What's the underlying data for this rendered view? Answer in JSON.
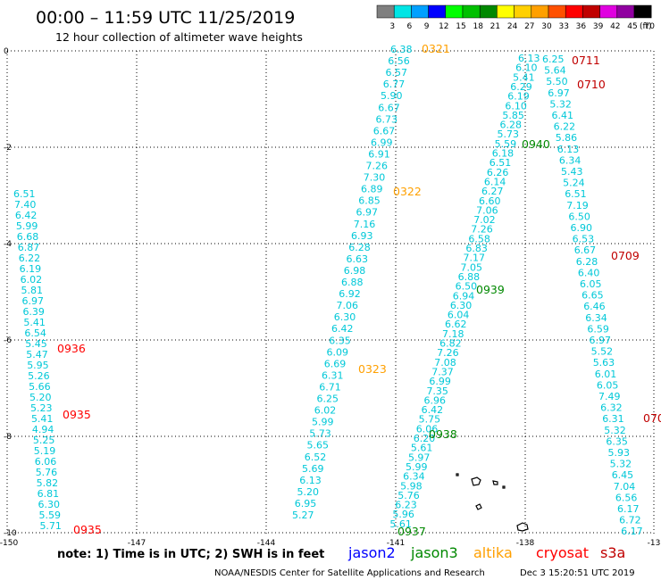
{
  "header": {
    "title": "00:00 – 11:59 UTC 11/25/2019",
    "subtitle": "12 hour collection of altimeter wave heights"
  },
  "colorbar": {
    "colors": [
      "#7f7f7f",
      "#00e5e5",
      "#00a0ff",
      "#0000ff",
      "#00ff00",
      "#00c000",
      "#008800",
      "#ffff00",
      "#ffd000",
      "#ffa000",
      "#ff5000",
      "#ff0000",
      "#c00000",
      "#e000e0",
      "#9000a0",
      "#000000"
    ],
    "labels": [
      "3",
      "6",
      "9",
      "12",
      "15",
      "18",
      "21",
      "24",
      "27",
      "30",
      "33",
      "36",
      "39",
      "42",
      "45",
      "70"
    ],
    "unit": "(ft)"
  },
  "axes": {
    "x_ticks": [
      "-150",
      "-147",
      "-144",
      "-141",
      "-138",
      "-13"
    ],
    "y_ticks": [
      "0",
      "-2",
      "-4",
      "-6",
      "-8",
      "-10"
    ]
  },
  "note": "note: 1) Time is in UTC; 2) SWH is in feet",
  "legend": [
    {
      "name": "jason2",
      "color": "#0000ff"
    },
    {
      "name": "jason3",
      "color": "#008800"
    },
    {
      "name": "altika",
      "color": "#ffa000"
    },
    {
      "name": "cryosat",
      "color": "#ff0000"
    },
    {
      "name": "s3a",
      "color": "#c00000"
    }
  ],
  "footer": {
    "credit": "NOAA/NESDIS Center for Satellite Applications and Research",
    "timestamp": "Dec  3 15:20:51 UTC 2019"
  },
  "passes": [
    {
      "values": [
        "6.51",
        "7.40",
        "6.42",
        "5.99",
        "6.68",
        "6.87",
        "6.22",
        "6.19",
        "6.02",
        "5.81",
        "6.97",
        "6.39",
        "5.41",
        "6.54",
        "5.45",
        "5.47",
        "5.95",
        "5.26",
        "5.66",
        "5.20",
        "5.23",
        "5.41",
        "4.94",
        "5.25",
        "5.19",
        "6.06",
        "5.76",
        "5.82",
        "6.81",
        "6.30",
        "5.59",
        "5.71"
      ],
      "time_labels": [
        {
          "text": "0936",
          "color": "#ff0000"
        },
        {
          "text": "0935",
          "color": "#ff0000"
        },
        {
          "text": "0935",
          "color": "#ff0000"
        }
      ]
    },
    {
      "values": [
        "6.38",
        "6.56",
        "6.57",
        "6.77",
        "5.90",
        "6.67",
        "6.73",
        "6.67",
        "6.99",
        "6.91",
        "7.26",
        "7.30",
        "6.89",
        "6.85",
        "6.97",
        "7.16",
        "6.93",
        "6.28",
        "6.63",
        "6.98",
        "6.88",
        "6.92",
        "7.06",
        "6.30",
        "6.42",
        "6.35",
        "6.09",
        "6.69",
        "6.31",
        "6.71",
        "6.25",
        "6.02",
        "5.99",
        "5.73",
        "5.65",
        "6.52",
        "5.69",
        "6.13",
        "5.20",
        "6.95",
        "5.27"
      ],
      "time_labels": [
        {
          "text": "0321",
          "color": "#ffa000"
        },
        {
          "text": "0322",
          "color": "#ffa000"
        },
        {
          "text": "0323",
          "color": "#ffa000"
        }
      ]
    },
    {
      "values": [
        "6.13",
        "6.10",
        "5.41",
        "6.29",
        "6.19",
        "6.10",
        "5.85",
        "6.28",
        "5.73",
        "5.59",
        "6.18",
        "6.51",
        "6.26",
        "6.14",
        "6.27",
        "6.60",
        "7.06",
        "7.02",
        "7.26",
        "6.58",
        "6.83",
        "7.17",
        "7.05",
        "6.88",
        "6.50",
        "6.94",
        "6.30",
        "6.04",
        "6.62",
        "7.18",
        "6.82",
        "7.26",
        "7.08",
        "7.37",
        "6.99",
        "7.35",
        "6.96",
        "6.42",
        "5.75",
        "6.06",
        "6.20",
        "5.61",
        "5.97",
        "5.99",
        "6.34",
        "5.98",
        "5.76",
        "6.23",
        "5.96",
        "5.61"
      ],
      "time_labels": [
        {
          "text": "0940",
          "color": "#008800"
        },
        {
          "text": "0939",
          "color": "#008800"
        },
        {
          "text": "0938",
          "color": "#008800"
        },
        {
          "text": "0937",
          "color": "#008800"
        }
      ]
    },
    {
      "values": [
        "6.25",
        "5.64",
        "5.50",
        "6.97",
        "5.32",
        "6.41",
        "6.22",
        "5.86",
        "6.13",
        "6.34",
        "5.43",
        "5.24",
        "6.51",
        "7.19",
        "6.50",
        "6.90",
        "6.53",
        "6.67",
        "6.28",
        "6.40",
        "6.05",
        "6.65",
        "6.46",
        "6.34",
        "6.59",
        "6.97",
        "5.52",
        "5.63",
        "6.01",
        "6.05",
        "7.49",
        "6.32",
        "6.31",
        "5.32",
        "6.35",
        "5.93",
        "5.32",
        "6.45",
        "7.04",
        "6.56",
        "6.17",
        "6.72",
        "6.17"
      ],
      "time_labels": [
        {
          "text": "0711",
          "color": "#c00000"
        },
        {
          "text": "0710",
          "color": "#c00000"
        },
        {
          "text": "0709",
          "color": "#c00000"
        },
        {
          "text": "070",
          "color": "#c00000"
        }
      ]
    }
  ]
}
